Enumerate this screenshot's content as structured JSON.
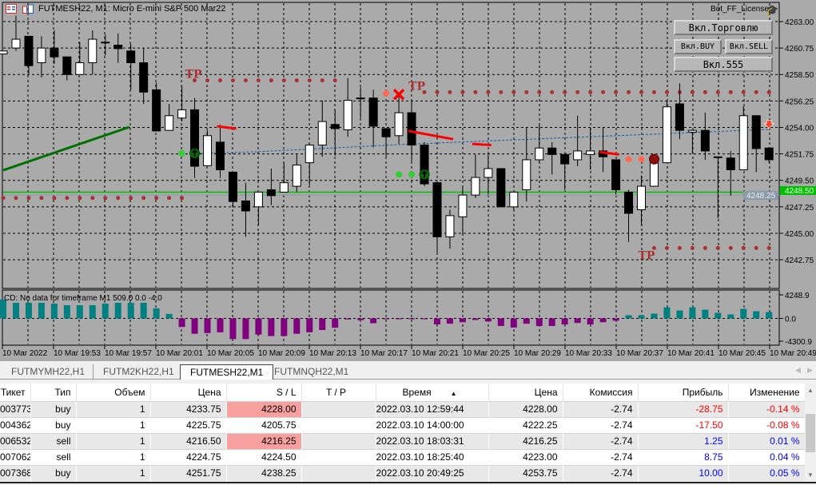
{
  "window": {
    "title": "FUTMESH22, M1:  Micro E-mini S&P 500 Mar22",
    "license_label": "Bot_FF_License"
  },
  "buttons": {
    "trade": "Вкл.Торговлю",
    "buy": "Вкл.BUY",
    "sell": "Вкл.SELL",
    "b555": "Вкл.555"
  },
  "indicator": {
    "text": "CD: No data for timeframe M1 509.0 0.0 -4.0",
    "scale_labels": [
      "4248.9",
      "0.0",
      "-4300.9"
    ]
  },
  "colors": {
    "bg": "#aaaaaa",
    "bull": "#ffffff",
    "bear": "#000000",
    "tp": "#a83232",
    "hist_pos": "#008080",
    "hist_neg": "#800080",
    "bid": "#00c000",
    "ask": "#8a9aaa"
  },
  "chart_data": {
    "type": "candlestick",
    "symbol": "FUTMESH22",
    "timeframe": "M1",
    "price_labels": [
      "4263.00",
      "4260.75",
      "4258.50",
      "4256.25",
      "4254.00",
      "4251.75",
      "4249.50",
      "4247.25",
      "4245.00",
      "4242.75"
    ],
    "bid_label": "4248.50",
    "ask_label": "4248.25",
    "bid": 4248.5,
    "ask": 4248.25,
    "time_labels": [
      "10 Mar 2022",
      "10 Mar 19:53",
      "10 Mar 19:57",
      "10 Mar 20:01",
      "10 Mar 20:05",
      "10 Mar 20:09",
      "10 Mar 20:13",
      "10 Mar 20:17",
      "10 Mar 20:21",
      "10 Mar 20:25",
      "10 Mar 20:29",
      "10 Mar 20:33",
      "10 Mar 20:37",
      "10 Mar 20:41",
      "10 Mar 20:45",
      "10 Mar 20:49"
    ],
    "candles_ohlc": [
      [
        4260.25,
        4260.5,
        4260.25,
        4260.5
      ],
      [
        4260.75,
        4263.5,
        4260.5,
        4261.5
      ],
      [
        4261.75,
        4261.75,
        4258.5,
        4259.25
      ],
      [
        4259.5,
        4261.75,
        4258.25,
        4260.75
      ],
      [
        4260.75,
        4262.25,
        4259.4,
        4260.0
      ],
      [
        4260.0,
        4260.0,
        4258.0,
        4258.5
      ],
      [
        4258.5,
        4261.25,
        4258.5,
        4259.5
      ],
      [
        4259.5,
        4262.25,
        4258.5,
        4261.5
      ],
      [
        4261.25,
        4261.9,
        4260.1,
        4261.25
      ],
      [
        4261.0,
        4262.0,
        4259.5,
        4260.7
      ],
      [
        4260.5,
        4261.1,
        4257.2,
        4259.5
      ],
      [
        4259.5,
        4260.75,
        4256.0,
        4257.0
      ],
      [
        4257.2,
        4257.8,
        4253.7,
        4253.7
      ],
      [
        4253.75,
        4256.0,
        4253.75,
        4255.0
      ],
      [
        4254.8,
        4257.5,
        4254.5,
        4255.5
      ],
      [
        4255.5,
        4256.5,
        4249.7,
        4250.7
      ],
      [
        4250.75,
        4253.75,
        4250.75,
        4253.3
      ],
      [
        4252.75,
        4254.25,
        4249.7,
        4250.4
      ],
      [
        4250.2,
        4250.2,
        4247.2,
        4247.7
      ],
      [
        4247.75,
        4249.3,
        4244.7,
        4246.9
      ],
      [
        4247.25,
        4248.5,
        4245.7,
        4248.5
      ],
      [
        4248.7,
        4250.5,
        4247.4,
        4248.2
      ],
      [
        4248.5,
        4251.0,
        4248.5,
        4249.3
      ],
      [
        4249.0,
        4251.7,
        4248.5,
        4250.8
      ],
      [
        4251.0,
        4252.5,
        4249.1,
        4252.5
      ],
      [
        4252.5,
        4256.3,
        4251.5,
        4254.5
      ],
      [
        4254.25,
        4255.5,
        4251.6,
        4253.9
      ],
      [
        4253.8,
        4258.2,
        4253.2,
        4256.3
      ],
      [
        4256.5,
        4257.4,
        4254.8,
        4256.5
      ],
      [
        4256.5,
        4257.2,
        4252.3,
        4254.1
      ],
      [
        4253.9,
        4253.9,
        4251.5,
        4253.2
      ],
      [
        4253.3,
        4256.7,
        4252.6,
        4255.25
      ],
      [
        4255.25,
        4256.2,
        4251.1,
        4252.5
      ],
      [
        4252.5,
        4252.75,
        4249.0,
        4249.2
      ],
      [
        4249.3,
        4249.3,
        4243.3,
        4244.7
      ],
      [
        4244.7,
        4247.0,
        4243.7,
        4246.5
      ],
      [
        4246.4,
        4248.9,
        4244.9,
        4248.25
      ],
      [
        4248.25,
        4251.7,
        4248.0,
        4249.75
      ],
      [
        4249.75,
        4251.7,
        4248.3,
        4250.5
      ],
      [
        4250.5,
        4250.5,
        4247.25,
        4247.25
      ],
      [
        4247.25,
        4248.5,
        4247.0,
        4248.5
      ],
      [
        4248.7,
        4254.0,
        4247.7,
        4251.25
      ],
      [
        4251.25,
        4254.2,
        4251.0,
        4252.25
      ],
      [
        4252.25,
        4252.75,
        4250.0,
        4251.7
      ],
      [
        4251.7,
        4251.7,
        4248.7,
        4250.9
      ],
      [
        4251.25,
        4255.0,
        4250.7,
        4252.0
      ],
      [
        4251.7,
        4254.0,
        4250.4,
        4252.0
      ],
      [
        4252.0,
        4254.0,
        4250.2,
        4251.5
      ],
      [
        4251.25,
        4251.25,
        4248.3,
        4248.7
      ],
      [
        4248.5,
        4248.7,
        4244.25,
        4246.7
      ],
      [
        4247.0,
        4249.9,
        4245.7,
        4249.0
      ],
      [
        4249.0,
        4251.6,
        4249.0,
        4251.0
      ],
      [
        4251.0,
        4256.2,
        4251.0,
        4255.75
      ],
      [
        4256.0,
        4257.75,
        4253.0,
        4253.75
      ],
      [
        4253.6,
        4253.75,
        4251.8,
        4253.75
      ],
      [
        4253.75,
        4255.25,
        4251.25,
        4252.0
      ],
      [
        4251.5,
        4251.5,
        4246.3,
        4251.5
      ],
      [
        4251.4,
        4252.0,
        4248.2,
        4250.4
      ],
      [
        4250.4,
        4255.8,
        4250.4,
        4255.0
      ],
      [
        4255.0,
        4255.0,
        4250.2,
        4252.2
      ],
      [
        4252.25,
        4252.25,
        4251.0,
        4251.25
      ]
    ],
    "histogram": [
      3400,
      2810,
      2810,
      2810,
      2670,
      2380,
      2380,
      2380,
      2670,
      2810,
      2810,
      2810,
      1810,
      810,
      -1620,
      -2900,
      -2760,
      -2620,
      -3900,
      -3900,
      -3050,
      -3330,
      -3330,
      -2900,
      -2620,
      -2190,
      -1760,
      -190,
      -330,
      -900,
      -30,
      -30,
      -50,
      -30,
      -1140,
      -1000,
      -715,
      -290,
      -570,
      -1430,
      -1720,
      -1000,
      -1430,
      -1430,
      -1140,
      -860,
      -1140,
      -715,
      -430,
      570,
      570,
      860,
      2000,
      1430,
      2000,
      1570,
      1000,
      715,
      1720,
      1290,
      1140
    ],
    "histogram_range": [
      -4300.9,
      4248.9
    ],
    "tp_label": "TP",
    "tp_rows": [
      {
        "price": 4258.0,
        "from": 15,
        "to": 26,
        "label_at": 14.5
      },
      {
        "price": 4257.0,
        "from": 33,
        "to": 60,
        "label_at": 32
      },
      {
        "price": 4243.75,
        "from": 51,
        "to": 60,
        "label_at": 50
      }
    ],
    "sl_dots": {
      "price": 4248.0,
      "from": 0,
      "to": 14
    },
    "trend_line": [
      [
        0,
        4250.36
      ],
      [
        10,
        4254.03
      ]
    ],
    "avg_line": [
      [
        15,
        4251.8
      ],
      [
        20,
        4251.93
      ],
      [
        31,
        4252.54
      ],
      [
        60,
        4253.83
      ]
    ],
    "red_segments": [
      [
        [
          17,
          4254.1
        ],
        [
          18,
          4253.9
        ]
      ],
      [
        [
          32,
          4253.7
        ],
        [
          35,
          4253.0
        ]
      ],
      [
        [
          37,
          4252.6
        ],
        [
          38,
          4252.5
        ]
      ],
      [
        [
          47,
          4251.9
        ],
        [
          48,
          4251.7
        ]
      ]
    ],
    "green_dots": [
      [
        14,
        4251.8
      ],
      [
        31,
        4250.0
      ],
      [
        32,
        4250.0
      ]
    ],
    "buy_arrows": [
      [
        15,
        4251.8
      ],
      [
        33,
        4250.0
      ]
    ],
    "orange_dots": [
      [
        30,
        4256.9
      ],
      [
        49,
        4251.3
      ],
      [
        50,
        4251.3
      ]
    ],
    "close_marks": [
      [
        31,
        4256.8
      ]
    ],
    "sell_circles": [
      [
        51,
        4251.3
      ]
    ],
    "down_arrows": [
      [
        60,
        4254.25
      ]
    ]
  },
  "tabs": [
    {
      "label": "FUTMYMH22,H1"
    },
    {
      "label": "FUTM2KH22,H1"
    },
    {
      "label": "FUTMESH22,M1"
    },
    {
      "label": "FUTMNQH22,M1"
    }
  ],
  "table": {
    "headers": [
      "Тикет",
      "Тип",
      "Объем",
      "Цена",
      "S / L",
      "T / P",
      "Время",
      "Цена",
      "Комиссия",
      "Прибыль",
      "Изменение"
    ],
    "sort_indicator": "▲",
    "rows": [
      {
        "ticket": "003773",
        "type": "buy",
        "volume": "1",
        "price": "4233.75",
        "sl": "4228.00",
        "tp": "",
        "time": "2022.03.10 12:59:44",
        "cur": "4228.00",
        "commission": "-2.74",
        "profit": "-28.75",
        "change": "-0.14 %",
        "sl_hit": true,
        "neg": true
      },
      {
        "ticket": "004362",
        "type": "buy",
        "volume": "1",
        "price": "4225.75",
        "sl": "4205.75",
        "tp": "",
        "time": "2022.03.10 14:00:00",
        "cur": "4222.25",
        "commission": "-2.74",
        "profit": "-17.50",
        "change": "-0.08 %",
        "sl_hit": false,
        "neg": true
      },
      {
        "ticket": "006532",
        "type": "sell",
        "volume": "1",
        "price": "4216.50",
        "sl": "4216.25",
        "tp": "",
        "time": "2022.03.10 18:03:31",
        "cur": "4216.25",
        "commission": "-2.74",
        "profit": "1.25",
        "change": "0.01 %",
        "sl_hit": true,
        "neg": false
      },
      {
        "ticket": "007062",
        "type": "sell",
        "volume": "1",
        "price": "4224.75",
        "sl": "4224.50",
        "tp": "",
        "time": "2022.03.10 18:25:40",
        "cur": "4223.00",
        "commission": "-2.74",
        "profit": "8.75",
        "change": "0.04 %",
        "sl_hit": false,
        "neg": false
      },
      {
        "ticket": "007368",
        "type": "buy",
        "volume": "1",
        "price": "4251.75",
        "sl": "4238.25",
        "tp": "",
        "time": "2022.03.10 20:49:25",
        "cur": "4253.75",
        "commission": "-2.74",
        "profit": "10.00",
        "change": "0.05 %",
        "sl_hit": false,
        "neg": false
      }
    ]
  }
}
